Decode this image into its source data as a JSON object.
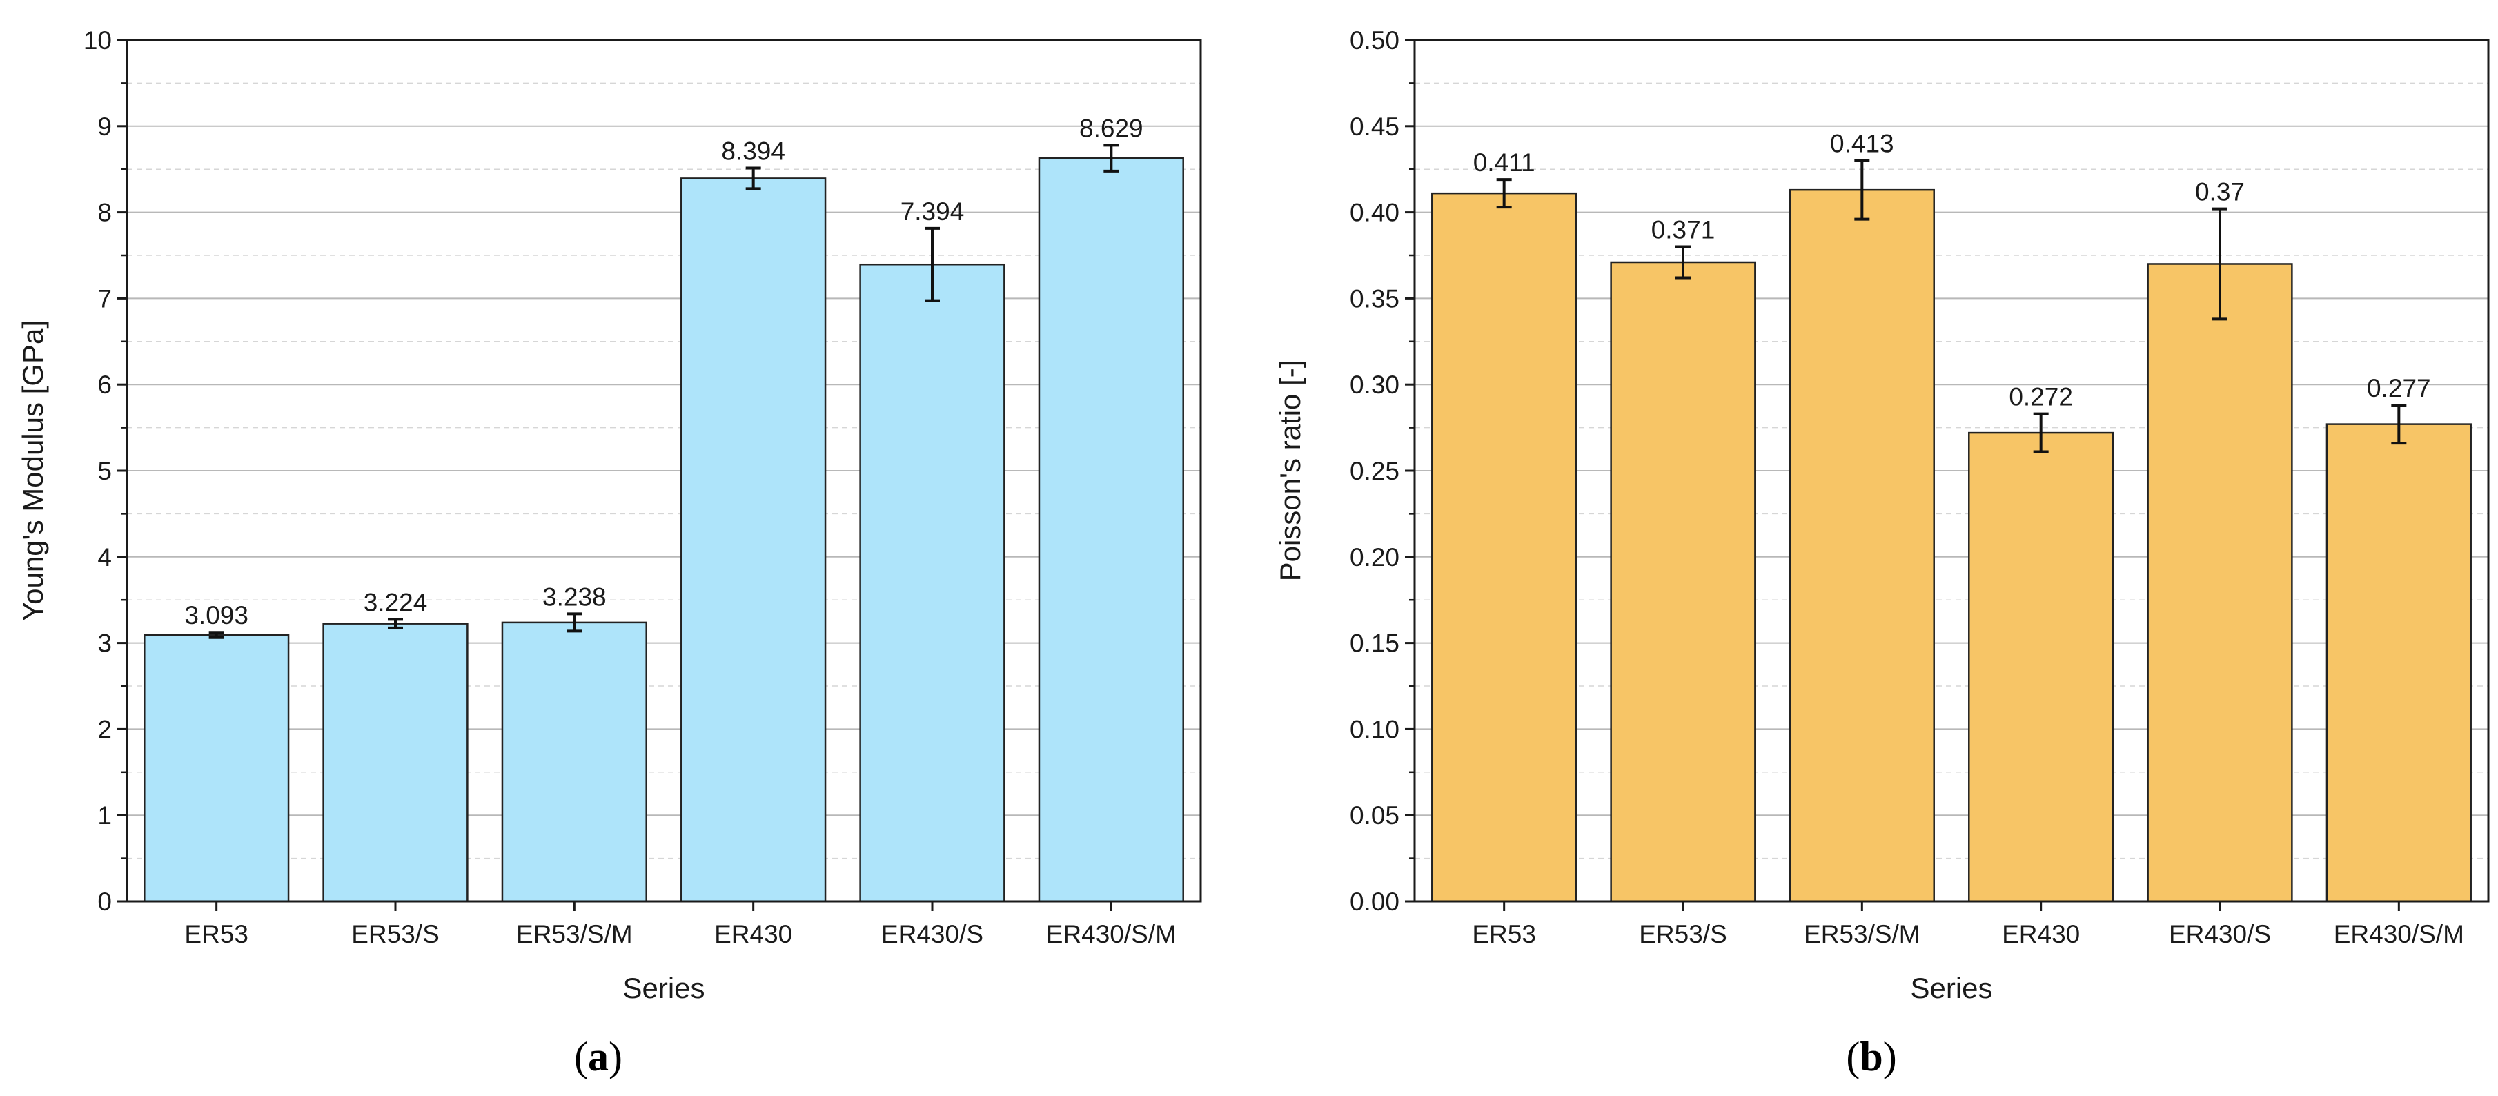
{
  "chart_data": [
    {
      "type": "bar",
      "panel_label": "a",
      "categories": [
        "ER53",
        "ER53/S",
        "ER53/S/M",
        "ER430",
        "ER430/S",
        "ER430/S/M"
      ],
      "values": [
        3.093,
        3.224,
        3.238,
        8.394,
        7.394,
        8.629
      ],
      "value_labels": [
        "3.093",
        "3.224",
        "3.238",
        "8.394",
        "7.394",
        "8.629"
      ],
      "errors": [
        0.03,
        0.05,
        0.1,
        0.12,
        0.42,
        0.15
      ],
      "xlabel": "Series",
      "ylabel": "Young's Modulus [GPa]",
      "ylim": [
        0,
        10
      ],
      "yticks": [
        0,
        1,
        2,
        3,
        4,
        5,
        6,
        7,
        8,
        9,
        10
      ],
      "ytick_labels": [
        "0",
        "1",
        "2",
        "3",
        "4",
        "5",
        "6",
        "7",
        "8",
        "9",
        "10"
      ],
      "grid": true,
      "bar_color": "#aee4fa"
    },
    {
      "type": "bar",
      "panel_label": "b",
      "categories": [
        "ER53",
        "ER53/S",
        "ER53/S/M",
        "ER430",
        "ER430/S",
        "ER430/S/M"
      ],
      "values": [
        0.411,
        0.371,
        0.413,
        0.272,
        0.37,
        0.277
      ],
      "value_labels": [
        "0.411",
        "0.371",
        "0.413",
        "0.272",
        "0.37",
        "0.277"
      ],
      "errors": [
        0.008,
        0.009,
        0.017,
        0.011,
        0.032,
        0.011
      ],
      "xlabel": "Series",
      "ylabel": "Poisson's ratio [-]",
      "ylim": [
        0,
        0.5
      ],
      "yticks": [
        0,
        0.05,
        0.1,
        0.15,
        0.2,
        0.25,
        0.3,
        0.35,
        0.4,
        0.45,
        0.5
      ],
      "ytick_labels": [
        "0.00",
        "0.05",
        "0.10",
        "0.15",
        "0.20",
        "0.25",
        "0.30",
        "0.35",
        "0.40",
        "0.45",
        "0.50"
      ],
      "grid": true,
      "bar_color": "#f7c566"
    }
  ],
  "colors": {
    "axis": "#1a1a1a",
    "grid": "#c8c8c8",
    "bar_edge": "#222222"
  },
  "captions": [
    "(a)",
    "(b)"
  ]
}
